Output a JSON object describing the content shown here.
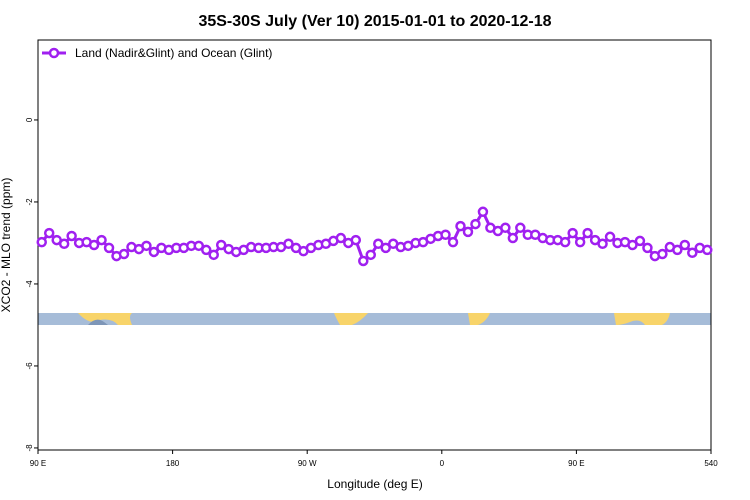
{
  "chart_data": {
    "type": "line",
    "title": "35S-30S July (Ver 10)   2015-01-01 to 2020-12-18",
    "x_label": "Longitude (deg E)",
    "y_label": "XCO2 - MLO trend (ppm)",
    "legend": "top-left",
    "x": [
      92.5,
      97.5,
      102.5,
      107.5,
      112.5,
      117.5,
      122.5,
      127.5,
      132.5,
      137.5,
      142.5,
      147.5,
      152.5,
      157.5,
      162.5,
      167.5,
      172.5,
      177.5,
      182.5,
      187.5,
      192.5,
      197.5,
      202.5,
      207.5,
      212.5,
      217.5,
      222.5,
      227.5,
      232.5,
      237.5,
      242.5,
      247.5,
      252.5,
      257.5,
      262.5,
      267.5,
      272.5,
      277.5,
      282.5,
      287.5,
      292.5,
      297.5,
      302.5,
      307.5,
      312.5,
      317.5,
      322.5,
      327.5,
      332.5,
      337.5,
      342.5,
      347.5,
      352.5,
      357.5,
      362.5,
      367.5,
      372.5,
      377.5,
      382.5,
      387.5,
      392.5,
      397.5,
      402.5,
      407.5,
      412.5,
      417.5,
      422.5,
      427.5,
      432.5,
      437.5,
      442.5,
      447.5,
      452.5,
      457.5,
      462.5,
      467.5,
      472.5,
      477.5,
      482.5,
      487.5,
      492.5,
      497.5,
      502.5,
      507.5,
      512.5,
      517.5,
      522.5,
      527.5,
      532.5,
      537.5
    ],
    "series": [
      {
        "name": "Land (Nadir&Glint) and Ocean (Glint)",
        "color": "#a020f0",
        "values": [
          -2.98,
          -2.76,
          -2.93,
          -3.02,
          -2.83,
          -3.0,
          -2.98,
          -3.05,
          -2.93,
          -3.12,
          -3.32,
          -3.27,
          -3.1,
          -3.15,
          -3.07,
          -3.22,
          -3.12,
          -3.17,
          -3.12,
          -3.12,
          -3.07,
          -3.07,
          -3.17,
          -3.29,
          -3.05,
          -3.15,
          -3.22,
          -3.17,
          -3.1,
          -3.12,
          -3.12,
          -3.1,
          -3.1,
          -3.02,
          -3.12,
          -3.2,
          -3.12,
          -3.05,
          -3.02,
          -2.95,
          -2.88,
          -3.0,
          -2.93,
          -3.44,
          -3.29,
          -3.02,
          -3.12,
          -3.02,
          -3.1,
          -3.07,
          -3.0,
          -2.98,
          -2.9,
          -2.83,
          -2.8,
          -2.98,
          -2.59,
          -2.73,
          -2.54,
          -2.24,
          -2.63,
          -2.71,
          -2.63,
          -2.88,
          -2.63,
          -2.8,
          -2.8,
          -2.88,
          -2.93,
          -2.93,
          -2.98,
          -2.76,
          -2.98,
          -2.76,
          -2.93,
          -3.02,
          -2.85,
          -3.0,
          -2.98,
          -3.05,
          -2.95,
          -3.12,
          -3.32,
          -3.27,
          -3.1,
          -3.17,
          -3.05,
          -3.24,
          -3.12,
          -3.17
        ]
      }
    ],
    "xlim": [
      90,
      540
    ],
    "xticks": [
      {
        "value": 90,
        "label": "90 E"
      },
      180,
      {
        "value": 270,
        "label": "90 W"
      },
      {
        "value": 360,
        "label": "0"
      },
      {
        "value": 450,
        "label": "90 E"
      },
      540
    ],
    "ylim": [
      -8.05,
      1.95
    ],
    "yticks": [
      0,
      -2,
      -4,
      -6,
      -8
    ]
  }
}
